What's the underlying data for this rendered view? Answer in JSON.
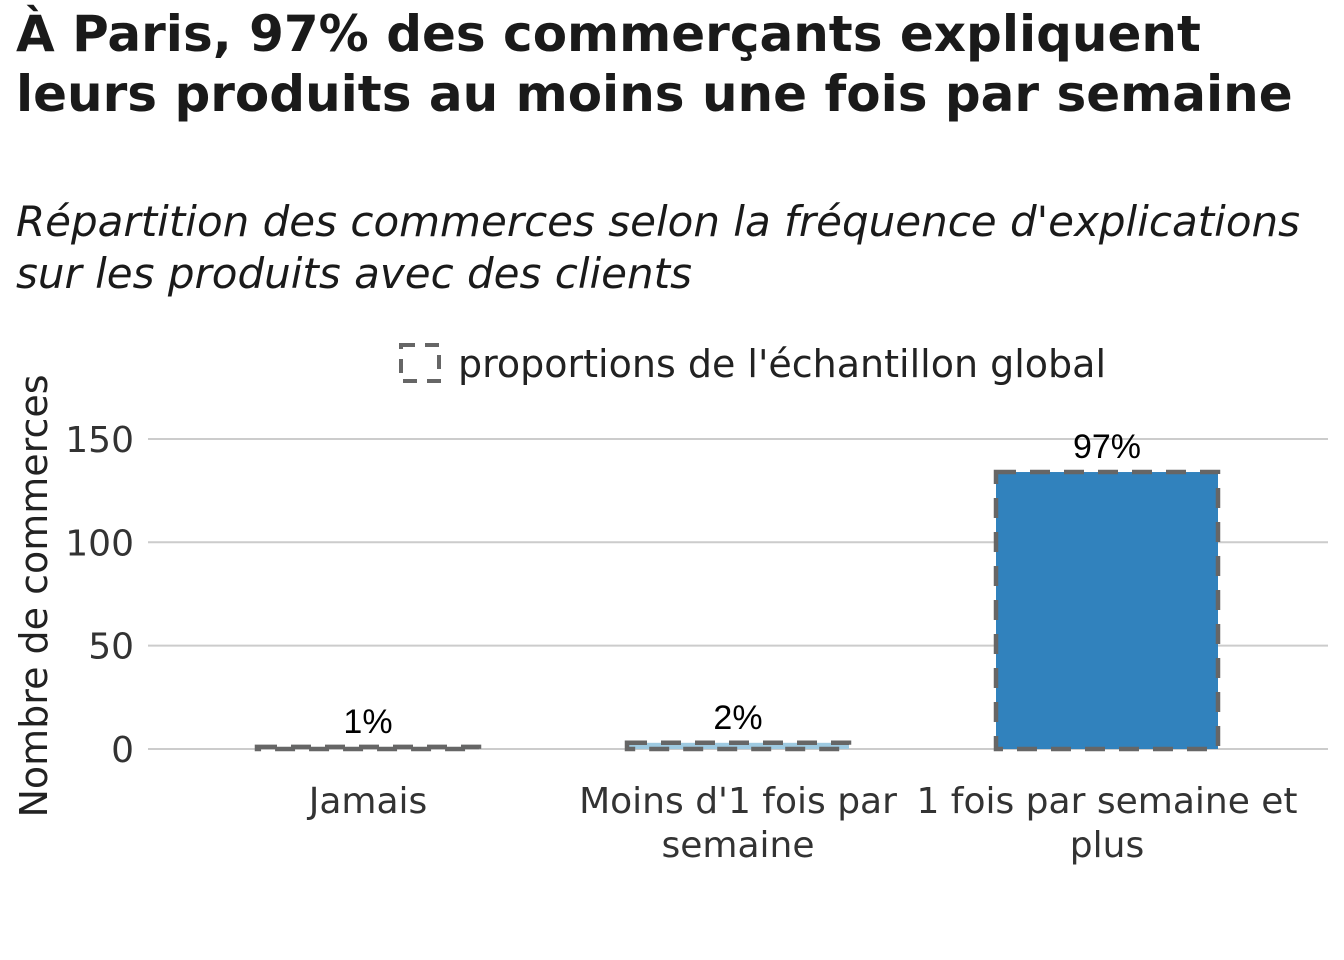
{
  "title": "À Paris, 97% des commerçants expliquent leurs produits au moins une fois par semaine",
  "subtitle": "Répartition des commerces selon la fréquence d'explications sur les produits avec des clients",
  "chart_data": {
    "type": "bar",
    "title": "À Paris, 97% des commerçants expliquent leurs produits au moins une fois par semaine",
    "subtitle": "Répartition des commerces selon la fréquence d'explications sur les produits avec des clients",
    "xlabel": "",
    "ylabel": "Nombre de commerces",
    "ylim": [
      0,
      165
    ],
    "yticks": [
      0,
      50,
      100,
      150
    ],
    "ytick_labels": [
      "0",
      "50",
      "100",
      "150"
    ],
    "categories": [
      [
        "Jamais"
      ],
      [
        "Moins d'1 fois par",
        "semaine"
      ],
      [
        "1 fois par semaine et",
        "plus"
      ]
    ],
    "values": [
      1,
      3,
      134
    ],
    "global_reference_values": [
      1,
      3,
      134
    ],
    "percent_labels": [
      "1%",
      "2%",
      "97%"
    ],
    "bar_colors": [
      "#c6dbef",
      "#9ecae1",
      "#3182bd"
    ],
    "legend": {
      "label": "proportions de l'échantillon global",
      "position": "top"
    },
    "grid": true
  }
}
